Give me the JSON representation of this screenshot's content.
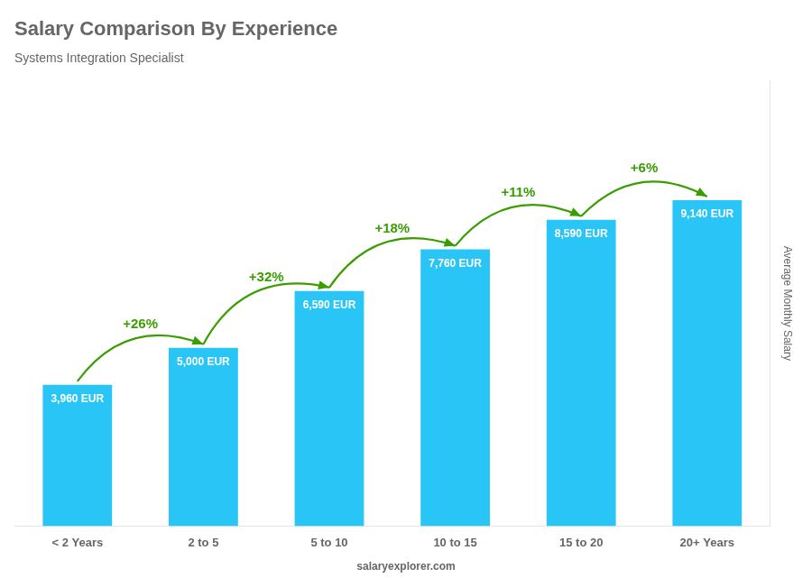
{
  "chart_data": {
    "type": "bar",
    "title": "Salary Comparison By Experience",
    "subtitle": "Systems Integration Specialist",
    "categories": [
      "< 2 Years",
      "2 to 5",
      "5 to 10",
      "10 to 15",
      "15 to 20",
      "20+ Years"
    ],
    "values": [
      3960,
      5000,
      6590,
      7760,
      8590,
      9140
    ],
    "value_labels": [
      "3,960 EUR",
      "5,000 EUR",
      "6,590 EUR",
      "7,760 EUR",
      "8,590 EUR",
      "9,140 EUR"
    ],
    "data_labels": true,
    "color": "#29c5f6",
    "ylim": [
      0,
      12500
    ],
    "ylabel": "Average Monthly Salary",
    "tick_labels": "x",
    "grid": false,
    "annotations": [
      {
        "text": "+26%",
        "color": "#3a9d00"
      },
      {
        "text": "+32%",
        "color": "#3a9d00"
      },
      {
        "text": "+18%",
        "color": "#3a9d00"
      },
      {
        "text": "+11%",
        "color": "#3a9d00"
      },
      {
        "text": "+6%",
        "color": "#3a9d00"
      }
    ],
    "watermark": "salaryexplorer.com"
  }
}
